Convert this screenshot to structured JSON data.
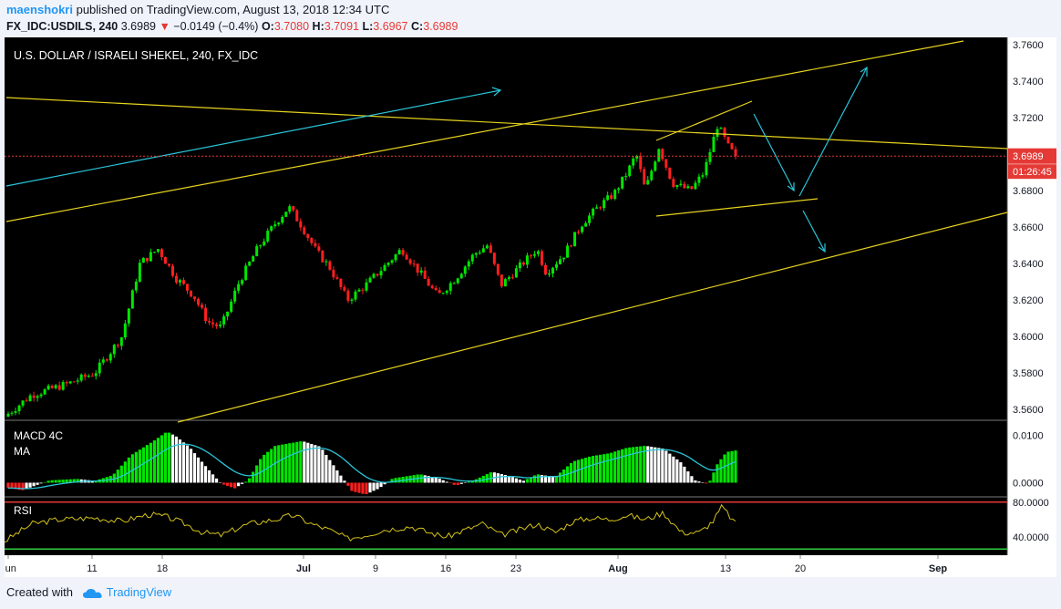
{
  "header": {
    "user": "maenshokri",
    "published": " published on TradingView.com, August 13, 2018 12:34 UTC",
    "symbol": "FX_IDC:USDILS, 240",
    "last": "3.6989",
    "change_arrow": "▼",
    "change": "−0.0149 (−0.4%)",
    "o_label": "O:",
    "o_value": "3.7080",
    "h_label": "H:",
    "h_value": "3.7091",
    "l_label": "L:",
    "l_value": "3.6967",
    "c_label": "C:",
    "c_value": "3.6989"
  },
  "footer": {
    "created_with": "Created with",
    "brand": "TradingView"
  },
  "colors": {
    "background": "#000000",
    "bull": "#00e600",
    "bear": "#ff1f1f",
    "trendline": "#e6d31e",
    "arrow": "#29c5d9",
    "rsi": "#d4c21a",
    "macd_signal": "#29c5d9",
    "price_tag": "#e53935"
  },
  "chart_data": {
    "type": "candlestick",
    "title": "U.S. DOLLAR / ISRAELI SHEKEL, 240, FX_IDC",
    "price_axis": {
      "ticks": [
        "3.7600",
        "3.7400",
        "3.7200",
        "3.6800",
        "3.6600",
        "3.6400",
        "3.6200",
        "3.6000",
        "3.5800",
        "3.5600"
      ],
      "range": [
        3.554,
        3.764
      ]
    },
    "current_price": {
      "label": "3.6989",
      "value": 3.6989,
      "countdown": "01:26:45"
    },
    "time_axis": [
      "Jun",
      "11",
      "18",
      "Jul",
      "9",
      "16",
      "23",
      "Aug",
      "13",
      "20",
      "Sep"
    ],
    "close_path": [
      [
        0,
        3.556
      ],
      [
        0.03,
        3.568
      ],
      [
        0.07,
        3.574
      ],
      [
        0.1,
        3.58
      ],
      [
        0.13,
        3.6
      ],
      [
        0.15,
        3.64
      ],
      [
        0.17,
        3.648
      ],
      [
        0.19,
        3.632
      ],
      [
        0.21,
        3.622
      ],
      [
        0.225,
        3.608
      ],
      [
        0.24,
        3.605
      ],
      [
        0.26,
        3.63
      ],
      [
        0.28,
        3.648
      ],
      [
        0.3,
        3.662
      ],
      [
        0.315,
        3.671
      ],
      [
        0.33,
        3.66
      ],
      [
        0.345,
        3.647
      ],
      [
        0.36,
        3.638
      ],
      [
        0.38,
        3.62
      ],
      [
        0.4,
        3.628
      ],
      [
        0.42,
        3.638
      ],
      [
        0.44,
        3.648
      ],
      [
        0.46,
        3.635
      ],
      [
        0.48,
        3.622
      ],
      [
        0.5,
        3.632
      ],
      [
        0.52,
        3.645
      ],
      [
        0.535,
        3.65
      ],
      [
        0.55,
        3.628
      ],
      [
        0.57,
        3.638
      ],
      [
        0.59,
        3.648
      ],
      [
        0.6,
        3.635
      ],
      [
        0.62,
        3.645
      ],
      [
        0.64,
        3.662
      ],
      [
        0.66,
        3.672
      ],
      [
        0.675,
        3.678
      ],
      [
        0.69,
        3.69
      ],
      [
        0.7,
        3.7
      ],
      [
        0.71,
        3.68
      ],
      [
        0.725,
        3.704
      ],
      [
        0.74,
        3.684
      ],
      [
        0.76,
        3.68
      ],
      [
        0.775,
        3.69
      ],
      [
        0.79,
        3.716
      ],
      [
        0.803,
        3.703
      ],
      [
        0.81,
        3.699
      ]
    ],
    "macd": {
      "name": "MACD 4C",
      "ma_label": "MA",
      "ticks": [
        "0.0100",
        "0.0000"
      ],
      "range": [
        -0.0028,
        0.0128
      ],
      "series": [
        [
          0,
          -0.001
        ],
        [
          0.02,
          -0.0016
        ],
        [
          0.05,
          0.0005
        ],
        [
          0.08,
          0.0008
        ],
        [
          0.1,
          0.0004
        ],
        [
          0.12,
          0.0016
        ],
        [
          0.14,
          0.0058
        ],
        [
          0.165,
          0.0088
        ],
        [
          0.18,
          0.0108
        ],
        [
          0.19,
          0.0098
        ],
        [
          0.205,
          0.0075
        ],
        [
          0.225,
          0.003
        ],
        [
          0.24,
          -0.0002
        ],
        [
          0.255,
          -0.0012
        ],
        [
          0.27,
          0.0005
        ],
        [
          0.285,
          0.0055
        ],
        [
          0.3,
          0.0078
        ],
        [
          0.33,
          0.0088
        ],
        [
          0.35,
          0.0076
        ],
        [
          0.37,
          0.0022
        ],
        [
          0.385,
          -0.0018
        ],
        [
          0.4,
          -0.0025
        ],
        [
          0.415,
          -0.0012
        ],
        [
          0.43,
          0.0009
        ],
        [
          0.46,
          0.0018
        ],
        [
          0.48,
          0.001
        ],
        [
          0.5,
          -0.0006
        ],
        [
          0.52,
          0.0005
        ],
        [
          0.54,
          0.0023
        ],
        [
          0.56,
          0.0014
        ],
        [
          0.575,
          0.0004
        ],
        [
          0.59,
          0.0018
        ],
        [
          0.61,
          0.0012
        ],
        [
          0.63,
          0.0045
        ],
        [
          0.65,
          0.0056
        ],
        [
          0.67,
          0.0062
        ],
        [
          0.69,
          0.0074
        ],
        [
          0.71,
          0.0078
        ],
        [
          0.73,
          0.0072
        ],
        [
          0.75,
          0.0042
        ],
        [
          0.765,
          0.0005
        ],
        [
          0.78,
          -0.0003
        ],
        [
          0.79,
          0.004
        ],
        [
          0.8,
          0.0065
        ],
        [
          0.81,
          0.0068
        ]
      ]
    },
    "rsi": {
      "name": "RSI",
      "ticks": [
        "80.0000",
        "40.0000"
      ],
      "range": [
        20,
        85
      ],
      "upper": 80,
      "lower": 26,
      "series": [
        [
          0,
          35
        ],
        [
          0.03,
          55
        ],
        [
          0.06,
          60
        ],
        [
          0.1,
          62
        ],
        [
          0.13,
          58
        ],
        [
          0.16,
          66
        ],
        [
          0.18,
          63
        ],
        [
          0.2,
          55
        ],
        [
          0.22,
          45
        ],
        [
          0.24,
          42
        ],
        [
          0.27,
          55
        ],
        [
          0.3,
          60
        ],
        [
          0.32,
          65
        ],
        [
          0.34,
          55
        ],
        [
          0.36,
          48
        ],
        [
          0.38,
          38
        ],
        [
          0.4,
          42
        ],
        [
          0.42,
          48
        ],
        [
          0.45,
          52
        ],
        [
          0.47,
          45
        ],
        [
          0.49,
          40
        ],
        [
          0.51,
          48
        ],
        [
          0.53,
          55
        ],
        [
          0.55,
          42
        ],
        [
          0.57,
          48
        ],
        [
          0.59,
          55
        ],
        [
          0.61,
          45
        ],
        [
          0.63,
          58
        ],
        [
          0.65,
          62
        ],
        [
          0.67,
          60
        ],
        [
          0.69,
          65
        ],
        [
          0.71,
          60
        ],
        [
          0.73,
          68
        ],
        [
          0.75,
          45
        ],
        [
          0.77,
          45
        ],
        [
          0.785,
          58
        ],
        [
          0.795,
          75
        ],
        [
          0.81,
          55
        ]
      ]
    }
  }
}
